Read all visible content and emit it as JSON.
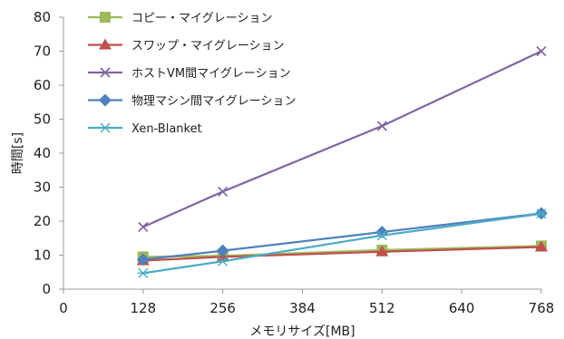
{
  "chart_data": {
    "type": "line",
    "xlabel": "メモリサイズ[MB]",
    "ylabel": "時間[s]",
    "xlim": [
      0,
      768
    ],
    "ylim": [
      0,
      80
    ],
    "x_ticks": [
      "0",
      "128",
      "256",
      "384",
      "512",
      "640",
      "768"
    ],
    "y_ticks": [
      "0",
      "10",
      "20",
      "30",
      "40",
      "50",
      "60",
      "70",
      "80"
    ],
    "legend_position": "top-left",
    "grid": false,
    "x": [
      128,
      256,
      512,
      768
    ],
    "series": [
      {
        "name": "コピー・マイグレーション",
        "color": "#9bbb59",
        "marker": "square",
        "values": [
          9.5,
          9.8,
          11.5,
          12.7
        ]
      },
      {
        "name": "スワップ・マイグレーション",
        "color": "#c0504d",
        "marker": "triangle",
        "values": [
          8.4,
          9.5,
          11.0,
          12.4
        ]
      },
      {
        "name": "ホストVM間マイグレーション",
        "color": "#8064a2",
        "marker": "x",
        "values": [
          18.3,
          28.7,
          48.0,
          70.0
        ]
      },
      {
        "name": "物理マシン間マイグレーション",
        "color": "#4f81bd",
        "marker": "diamond",
        "values": [
          8.7,
          11.3,
          16.8,
          22.3
        ]
      },
      {
        "name": "Xen-Blanket",
        "color": "#4bacc6",
        "marker": "asterisk",
        "values": [
          4.7,
          8.2,
          15.8,
          22.2
        ]
      }
    ]
  }
}
